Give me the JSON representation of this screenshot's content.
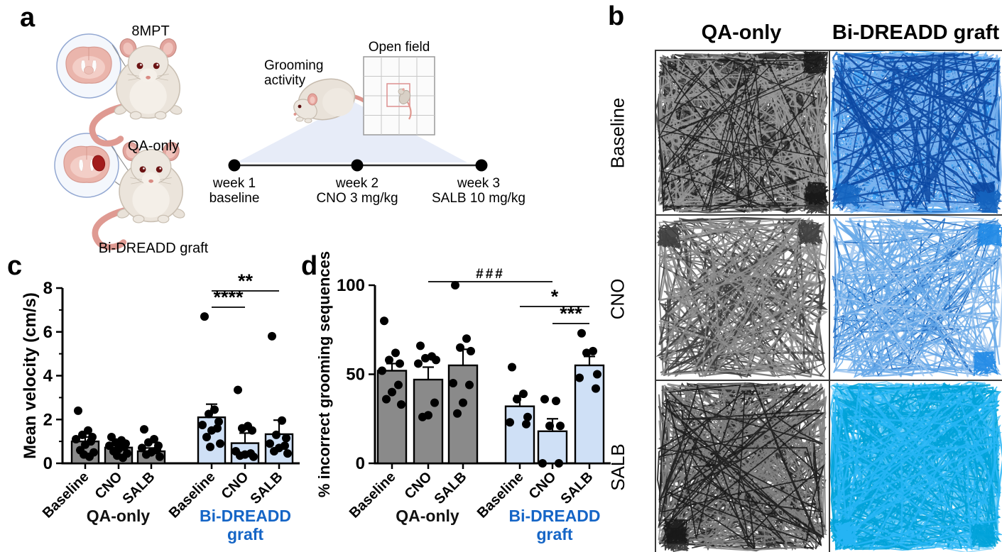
{
  "panel_a": {
    "label": "a",
    "mpt_label": "8MPT",
    "qa_label": "QA-only",
    "graft_label": "Bi-DREADD graft",
    "grooming_line1": "Grooming",
    "grooming_line2": "activity",
    "open_field_label": "Open field",
    "timeline": [
      {
        "week": "week 1",
        "treatment": "baseline"
      },
      {
        "week": "week 2",
        "treatment": "CNO 3 mg/kg"
      },
      {
        "week": "week 3",
        "treatment": "SALB 10 mg/kg"
      }
    ]
  },
  "panel_b": {
    "label": "b",
    "col_headers": [
      "QA-only",
      "Bi-DREADD graft"
    ],
    "row_labels": [
      "Baseline",
      "CNO",
      "SALB"
    ],
    "cells": [
      {
        "row": "Baseline",
        "col": "QA-only",
        "seed": 11,
        "paths": 13,
        "segments": 55,
        "edge_bias": 0.8,
        "clusters": 3,
        "palette": [
          "#161616",
          "#2f2f2f",
          "#555555",
          "#7d7d7d",
          "#9a9a9a"
        ]
      },
      {
        "row": "Baseline",
        "col": "Bi-DREADD graft",
        "seed": 22,
        "paths": 13,
        "segments": 55,
        "edge_bias": 0.8,
        "clusters": 3,
        "palette": [
          "#0b47a1",
          "#1565c0",
          "#1e88e5",
          "#42a5f5",
          "#7ab3ef"
        ]
      },
      {
        "row": "CNO",
        "col": "QA-only",
        "seed": 33,
        "paths": 6,
        "segments": 42,
        "edge_bias": 0.72,
        "clusters": 2,
        "palette": [
          "#161616",
          "#3a3a3a",
          "#666666",
          "#8d8d8d"
        ]
      },
      {
        "row": "CNO",
        "col": "Bi-DREADD graft",
        "seed": 44,
        "paths": 6,
        "segments": 42,
        "edge_bias": 0.72,
        "clusters": 2,
        "palette": [
          "#1565c0",
          "#1e88e5",
          "#64a7e8",
          "#9cc4ee"
        ]
      },
      {
        "row": "SALB",
        "col": "QA-only",
        "seed": 55,
        "paths": 10,
        "segments": 50,
        "edge_bias": 0.75,
        "clusters": 2,
        "palette": [
          "#161616",
          "#2f2f2f",
          "#555555",
          "#808080"
        ]
      },
      {
        "row": "SALB",
        "col": "Bi-DREADD graft",
        "seed": 66,
        "paths": 13,
        "segments": 55,
        "edge_bias": 0.78,
        "clusters": 3,
        "palette": [
          "#00a2d8",
          "#29b6f6",
          "#4fc3f7",
          "#81d4fa",
          "#1e88e5"
        ]
      }
    ]
  },
  "panel_c_label": "c",
  "panel_d_label": "d",
  "chart_data": [
    {
      "id": "c",
      "type": "bar",
      "ylabel": "Mean velocity (cm/s)",
      "ylim": [
        0,
        8
      ],
      "yticks": [
        0,
        2,
        4,
        6,
        8
      ],
      "minor_tick_step": 1,
      "categories": [
        "Baseline",
        "CNO",
        "SALB",
        "Baseline",
        "CNO",
        "SALB"
      ],
      "groups": [
        {
          "label_lines": [
            "QA-only"
          ],
          "color": "#111111",
          "bars": [
            0,
            1,
            2
          ]
        },
        {
          "label_lines": [
            "Bi-DREADD",
            "graft"
          ],
          "color": "#1565c6",
          "bars": [
            3,
            4,
            5
          ]
        }
      ],
      "bars": [
        {
          "category": "Baseline",
          "group": "QA-only",
          "fill": "#8a8a8a",
          "value": 1.0,
          "sem_top": 1.2,
          "points": [
            2.4,
            1.5,
            1.3,
            1.2,
            1.1,
            1.0,
            0.85,
            0.6,
            0.5,
            0.4,
            0.3
          ]
        },
        {
          "category": "CNO",
          "group": "QA-only",
          "fill": "#8a8a8a",
          "value": 0.72,
          "sem_top": 0.85,
          "points": [
            1.2,
            1.05,
            0.95,
            0.9,
            0.8,
            0.75,
            0.65,
            0.55,
            0.45,
            0.35,
            0.25
          ]
        },
        {
          "category": "SALB",
          "group": "QA-only",
          "fill": "#8a8a8a",
          "value": 0.55,
          "sem_top": 0.7,
          "points": [
            1.55,
            1.1,
            0.95,
            0.8,
            0.7,
            0.6,
            0.5,
            0.4,
            0.3
          ]
        },
        {
          "category": "Baseline",
          "group": "Bi-DREADD graft",
          "fill": "#cfe0f6",
          "value": 2.1,
          "sem_top": 2.7,
          "points": [
            6.7,
            2.45,
            2.25,
            1.9,
            1.75,
            1.6,
            1.5,
            1.2,
            0.9,
            0.75
          ]
        },
        {
          "category": "CNO",
          "group": "Bi-DREADD graft",
          "fill": "#cfe0f6",
          "value": 0.92,
          "sem_top": 1.38,
          "points": [
            3.35,
            1.7,
            1.6,
            1.5,
            0.55,
            0.45,
            0.4,
            0.35,
            0.3
          ]
        },
        {
          "category": "SALB",
          "group": "Bi-DREADD graft",
          "fill": "#cfe0f6",
          "value": 1.33,
          "sem_top": 1.97,
          "points": [
            5.8,
            1.95,
            1.3,
            1.15,
            0.9,
            0.8,
            0.7,
            0.55,
            0.45
          ]
        }
      ],
      "significance": [
        {
          "from": 3,
          "to": 5,
          "label": "**"
        },
        {
          "from": 3,
          "to": 4,
          "label": "****"
        }
      ]
    },
    {
      "id": "d",
      "type": "bar",
      "ylabel": "% incorrect grooming sequences",
      "ylim": [
        0,
        100
      ],
      "yticks": [
        0,
        50,
        100
      ],
      "minor_tick_step": 0,
      "categories": [
        "Baseline",
        "CNO",
        "SALB",
        "Baseline",
        "CNO",
        "SALB"
      ],
      "groups": [
        {
          "label_lines": [
            "QA-only"
          ],
          "color": "#111111",
          "bars": [
            0,
            1,
            2
          ]
        },
        {
          "label_lines": [
            "Bi-DREADD",
            "graft"
          ],
          "color": "#1565c6",
          "bars": [
            3,
            4,
            5
          ]
        }
      ],
      "bars": [
        {
          "category": "Baseline",
          "group": "QA-only",
          "fill": "#8a8a8a",
          "value": 52,
          "sem_top": 56,
          "points": [
            80,
            62,
            58,
            56,
            52,
            44,
            40,
            36,
            33
          ]
        },
        {
          "category": "CNO",
          "group": "QA-only",
          "fill": "#8a8a8a",
          "value": 47,
          "sem_top": 54,
          "points": [
            66,
            60,
            59,
            58,
            56,
            34,
            27,
            26
          ]
        },
        {
          "category": "SALB",
          "group": "QA-only",
          "fill": "#8a8a8a",
          "value": 55,
          "sem_top": 64,
          "points": [
            100,
            70,
            65,
            63,
            45,
            44,
            34,
            28
          ]
        },
        {
          "category": "Baseline",
          "group": "Bi-DREADD graft",
          "fill": "#cfe0f6",
          "value": 32,
          "sem_top": 38,
          "points": [
            54,
            39,
            36,
            26,
            23,
            22
          ]
        },
        {
          "category": "CNO",
          "group": "Bi-DREADD graft",
          "fill": "#cfe0f6",
          "value": 18,
          "sem_top": 25,
          "points": [
            36,
            35,
            21,
            21,
            0,
            0
          ]
        },
        {
          "category": "SALB",
          "group": "Bi-DREADD graft",
          "fill": "#cfe0f6",
          "value": 55,
          "sem_top": 60,
          "points": [
            73,
            63,
            62,
            50,
            48,
            42
          ]
        }
      ],
      "significance": [
        {
          "from": 1,
          "to": 4,
          "label": "###"
        },
        {
          "from": 3,
          "to": 5,
          "label": "*"
        },
        {
          "from": 4,
          "to": 5,
          "label": "***"
        }
      ]
    }
  ],
  "colors": {
    "qa_bar": "#8a8a8a",
    "graft_bar": "#cfe0f6",
    "graft_text": "#1565c6",
    "point": "#000000",
    "wedge": "#e7ecf8"
  }
}
